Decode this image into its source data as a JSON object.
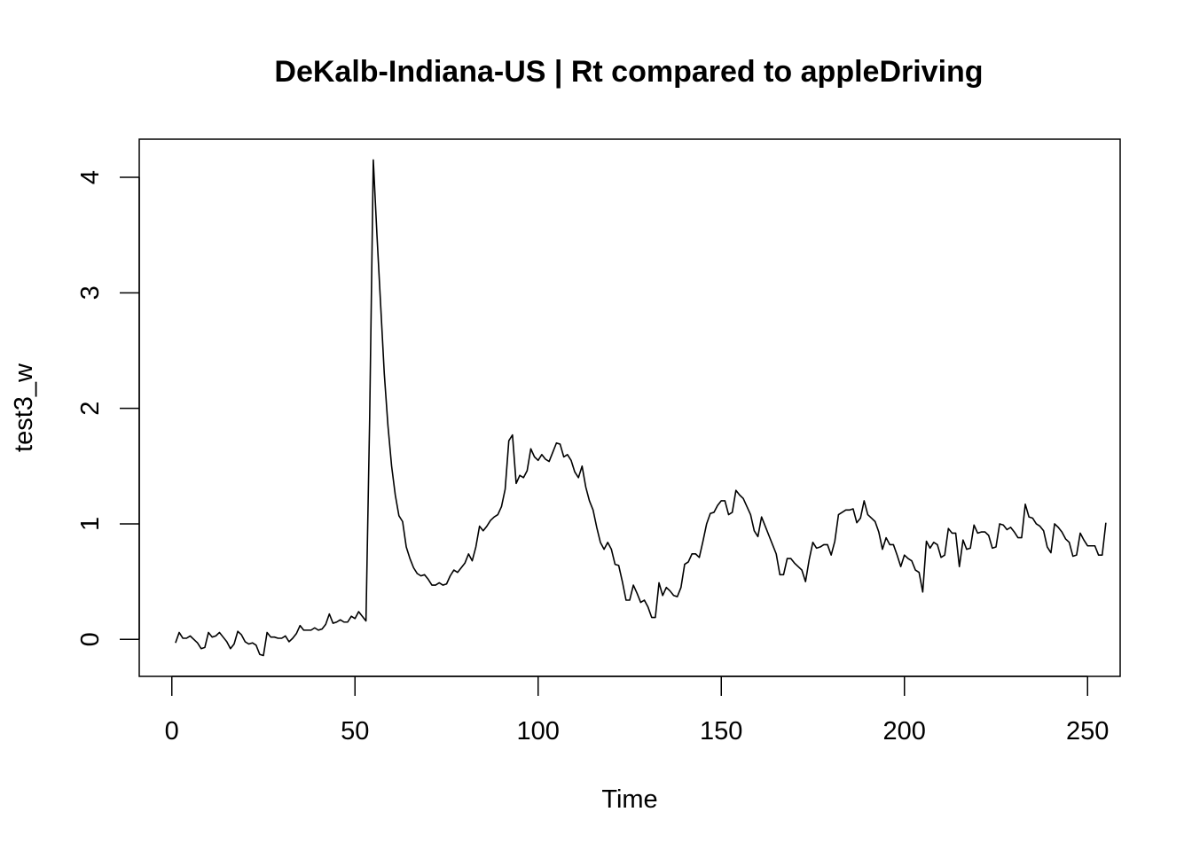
{
  "chart_data": {
    "type": "line",
    "title": "DeKalb-Indiana-US | Rt compared to appleDriving",
    "xlabel": "Time",
    "ylabel": "test3_w",
    "xlim": [
      -8.9,
      258.9
    ],
    "ylim": [
      -0.32,
      4.33
    ],
    "x_ticks": [
      0,
      50,
      100,
      150,
      200,
      250
    ],
    "y_ticks": [
      0,
      1,
      2,
      3,
      4
    ],
    "x_tick_labels": [
      "0",
      "50",
      "100",
      "150",
      "200",
      "250"
    ],
    "y_tick_labels": [
      "0",
      "1",
      "2",
      "3",
      "4"
    ],
    "grid": false,
    "legend": "none",
    "color": "#000000",
    "series": [
      {
        "x_start": 1,
        "x_step": 1,
        "values": [
          -0.03,
          0.06,
          0.01,
          0.01,
          0.03,
          0.0,
          -0.03,
          -0.08,
          -0.07,
          0.06,
          0.02,
          0.03,
          0.06,
          0.02,
          -0.02,
          -0.08,
          -0.04,
          0.07,
          0.04,
          -0.02,
          -0.04,
          -0.03,
          -0.05,
          -0.13,
          -0.14,
          0.06,
          0.02,
          0.02,
          0.01,
          0.01,
          0.03,
          -0.02,
          0.01,
          0.05,
          0.12,
          0.08,
          0.08,
          0.08,
          0.1,
          0.08,
          0.09,
          0.13,
          0.22,
          0.14,
          0.15,
          0.17,
          0.15,
          0.15,
          0.2,
          0.18,
          0.24,
          0.2,
          0.16,
          1.9,
          4.15,
          3.5,
          2.9,
          2.3,
          1.85,
          1.5,
          1.25,
          1.07,
          1.02,
          0.8,
          0.7,
          0.62,
          0.57,
          0.55,
          0.56,
          0.52,
          0.47,
          0.47,
          0.49,
          0.47,
          0.48,
          0.55,
          0.6,
          0.58,
          0.62,
          0.66,
          0.74,
          0.68,
          0.8,
          0.98,
          0.94,
          0.98,
          1.03,
          1.06,
          1.08,
          1.15,
          1.3,
          1.72,
          1.77,
          1.35,
          1.42,
          1.4,
          1.46,
          1.65,
          1.58,
          1.55,
          1.6,
          1.56,
          1.54,
          1.62,
          1.7,
          1.69,
          1.58,
          1.6,
          1.55,
          1.45,
          1.4,
          1.5,
          1.32,
          1.2,
          1.12,
          0.97,
          0.84,
          0.78,
          0.84,
          0.78,
          0.65,
          0.64,
          0.5,
          0.34,
          0.34,
          0.47,
          0.4,
          0.32,
          0.34,
          0.28,
          0.19,
          0.19,
          0.49,
          0.38,
          0.45,
          0.42,
          0.38,
          0.37,
          0.45,
          0.65,
          0.67,
          0.74,
          0.74,
          0.71,
          0.85,
          1.0,
          1.09,
          1.1,
          1.16,
          1.2,
          1.2,
          1.08,
          1.1,
          1.29,
          1.25,
          1.22,
          1.15,
          1.08,
          0.94,
          0.89,
          1.06,
          0.98,
          0.9,
          0.82,
          0.74,
          0.56,
          0.56,
          0.7,
          0.7,
          0.66,
          0.63,
          0.6,
          0.5,
          0.69,
          0.84,
          0.79,
          0.8,
          0.82,
          0.82,
          0.73,
          0.85,
          1.08,
          1.1,
          1.12,
          1.12,
          1.13,
          1.01,
          1.05,
          1.2,
          1.08,
          1.05,
          1.02,
          0.93,
          0.78,
          0.88,
          0.82,
          0.82,
          0.73,
          0.63,
          0.73,
          0.7,
          0.68,
          0.6,
          0.58,
          0.41,
          0.85,
          0.79,
          0.84,
          0.82,
          0.71,
          0.73,
          0.96,
          0.92,
          0.92,
          0.63,
          0.86,
          0.78,
          0.79,
          0.99,
          0.92,
          0.93,
          0.93,
          0.9,
          0.79,
          0.8,
          1.0,
          0.99,
          0.95,
          0.97,
          0.93,
          0.88,
          0.88,
          1.17,
          1.06,
          1.05,
          1.0,
          0.98,
          0.94,
          0.8,
          0.75,
          1.0,
          0.97,
          0.93,
          0.87,
          0.84,
          0.72,
          0.73,
          0.92,
          0.86,
          0.81,
          0.81,
          0.81,
          0.73,
          0.73,
          1.01
        ]
      }
    ]
  }
}
